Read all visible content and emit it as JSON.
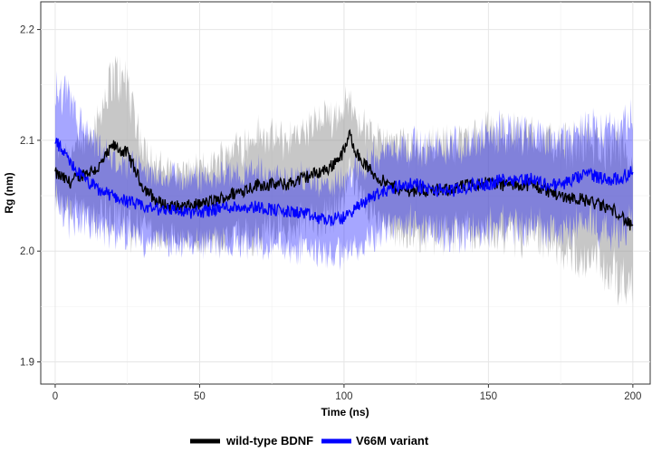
{
  "chart_data": {
    "type": "line",
    "title": "",
    "xlabel": "Time (ns)",
    "ylabel": "Rg (nm)",
    "xlim": [
      -5,
      206
    ],
    "ylim": [
      1.88,
      2.225
    ],
    "x_ticks": [
      0,
      50,
      100,
      150,
      200
    ],
    "y_ticks": [
      1.9,
      2.0,
      2.1,
      2.2
    ],
    "x_tick_labels": [
      "0",
      "50",
      "100",
      "150",
      "200"
    ],
    "y_tick_labels": [
      "1.9",
      "2.0",
      "2.1",
      "2.2"
    ],
    "grid": true,
    "legend_position": "bottom",
    "x": [
      0,
      5,
      10,
      15,
      20,
      25,
      30,
      35,
      40,
      45,
      50,
      55,
      60,
      65,
      70,
      75,
      80,
      85,
      90,
      95,
      100,
      102,
      105,
      110,
      115,
      120,
      125,
      130,
      135,
      140,
      145,
      150,
      155,
      160,
      165,
      170,
      175,
      180,
      185,
      190,
      195,
      200
    ],
    "series": [
      {
        "name": "wild-type BDNF",
        "color": "#000000",
        "band_color": "#999999",
        "values": [
          2.07,
          2.062,
          2.07,
          2.075,
          2.095,
          2.088,
          2.06,
          2.045,
          2.04,
          2.04,
          2.042,
          2.045,
          2.05,
          2.055,
          2.06,
          2.06,
          2.06,
          2.065,
          2.07,
          2.075,
          2.09,
          2.105,
          2.085,
          2.07,
          2.06,
          2.055,
          2.055,
          2.055,
          2.055,
          2.058,
          2.06,
          2.062,
          2.06,
          2.06,
          2.06,
          2.055,
          2.05,
          2.048,
          2.045,
          2.04,
          2.035,
          2.02
        ],
        "band": [
          0.025,
          0.03,
          0.03,
          0.05,
          0.07,
          0.07,
          0.04,
          0.035,
          0.035,
          0.035,
          0.035,
          0.038,
          0.045,
          0.045,
          0.05,
          0.045,
          0.045,
          0.045,
          0.048,
          0.05,
          0.045,
          0.035,
          0.035,
          0.04,
          0.04,
          0.045,
          0.045,
          0.045,
          0.045,
          0.045,
          0.05,
          0.05,
          0.05,
          0.05,
          0.05,
          0.05,
          0.05,
          0.055,
          0.06,
          0.06,
          0.065,
          0.06
        ]
      },
      {
        "name": "V66M variant",
        "color": "#0000FF",
        "band_color": "#0000FF",
        "values": [
          2.1,
          2.08,
          2.065,
          2.055,
          2.05,
          2.045,
          2.04,
          2.038,
          2.038,
          2.035,
          2.035,
          2.038,
          2.04,
          2.04,
          2.04,
          2.038,
          2.035,
          2.035,
          2.03,
          2.028,
          2.03,
          2.035,
          2.04,
          2.05,
          2.055,
          2.06,
          2.06,
          2.055,
          2.055,
          2.055,
          2.06,
          2.06,
          2.065,
          2.065,
          2.065,
          2.06,
          2.06,
          2.065,
          2.07,
          2.065,
          2.065,
          2.072
        ],
        "band": [
          0.05,
          0.06,
          0.045,
          0.04,
          0.035,
          0.035,
          0.035,
          0.033,
          0.033,
          0.033,
          0.033,
          0.033,
          0.035,
          0.035,
          0.035,
          0.035,
          0.035,
          0.035,
          0.035,
          0.035,
          0.035,
          0.035,
          0.04,
          0.04,
          0.04,
          0.04,
          0.04,
          0.04,
          0.045,
          0.045,
          0.045,
          0.045,
          0.048,
          0.048,
          0.048,
          0.045,
          0.045,
          0.045,
          0.05,
          0.05,
          0.05,
          0.05
        ]
      }
    ]
  }
}
